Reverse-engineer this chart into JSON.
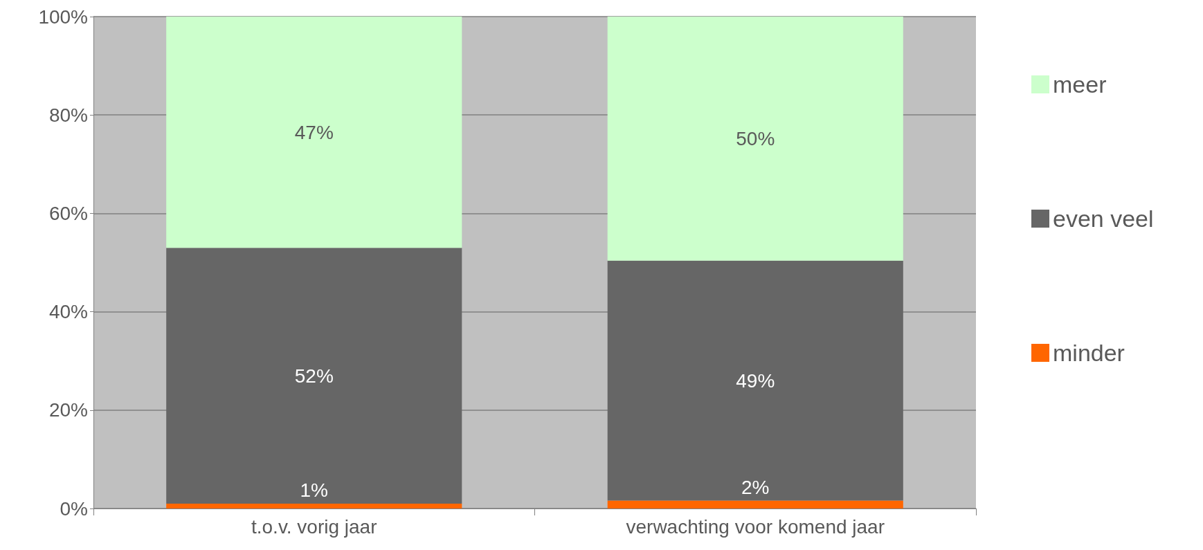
{
  "chart_data": {
    "type": "bar",
    "stacked": true,
    "categories": [
      "t.o.v. vorig jaar",
      "verwachting voor komend jaar"
    ],
    "series": [
      {
        "name": "minder",
        "color": "#ff6600",
        "values": [
          1,
          1.6
        ],
        "value_labels": [
          "1%",
          "2%"
        ]
      },
      {
        "name": "even veel",
        "color": "#666666",
        "values": [
          52,
          48.8
        ],
        "value_labels": [
          "52%",
          "49%"
        ]
      },
      {
        "name": "meer",
        "color": "#ccffcc",
        "values": [
          47,
          49.6
        ],
        "value_labels": [
          "47%",
          "50%"
        ]
      }
    ],
    "ylim": [
      0,
      100
    ],
    "yticks": [
      {
        "value": 0,
        "label": "0%"
      },
      {
        "value": 20,
        "label": "20%"
      },
      {
        "value": 40,
        "label": "40%"
      },
      {
        "value": 60,
        "label": "60%"
      },
      {
        "value": 80,
        "label": "80%"
      },
      {
        "value": 100,
        "label": "100%"
      }
    ],
    "grid": "y",
    "legend": "right"
  }
}
